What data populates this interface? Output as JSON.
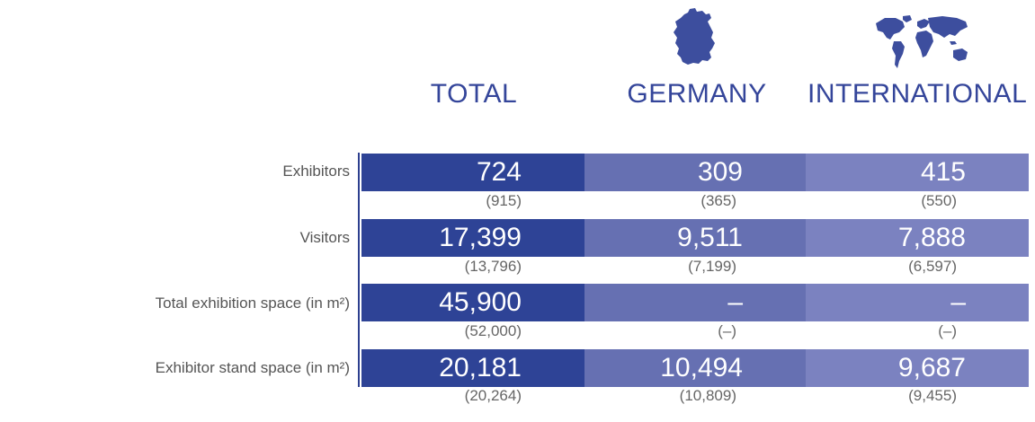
{
  "columns": [
    {
      "title": "TOTAL",
      "icon": "none"
    },
    {
      "title": "GERMANY",
      "icon": "germany-map-icon"
    },
    {
      "title": "INTERNATIONAL",
      "icon": "world-map-icon"
    }
  ],
  "chart_data": {
    "type": "table",
    "title": "",
    "columns": [
      "TOTAL",
      "GERMANY",
      "INTERNATIONAL"
    ],
    "rows": [
      {
        "label": "Exhibitors",
        "values": [
          "724",
          "309",
          "415"
        ],
        "previous": [
          "(915)",
          "(365)",
          "(550)"
        ]
      },
      {
        "label": "Visitors",
        "values": [
          "17,399",
          "9,511",
          "7,888"
        ],
        "previous": [
          "(13,796)",
          "(7,199)",
          "(6,597)"
        ]
      },
      {
        "label": "Total exhibition space (in m²)",
        "values": [
          "45,900",
          "–",
          "–"
        ],
        "previous": [
          "(52,000)",
          "(–)",
          "(–)"
        ]
      },
      {
        "label": "Exhibitor stand space (in m²)",
        "values": [
          "20,181",
          "10,494",
          "9,687"
        ],
        "previous": [
          "(20,264)",
          "(10,809)",
          "(9,455)"
        ]
      }
    ]
  },
  "colors": {
    "total_bar": "#2e4396",
    "germany_bar": "#6670b2",
    "international_bar": "#7b82c0",
    "header_text": "#34459a",
    "axis_line": "#2d3f8f"
  }
}
